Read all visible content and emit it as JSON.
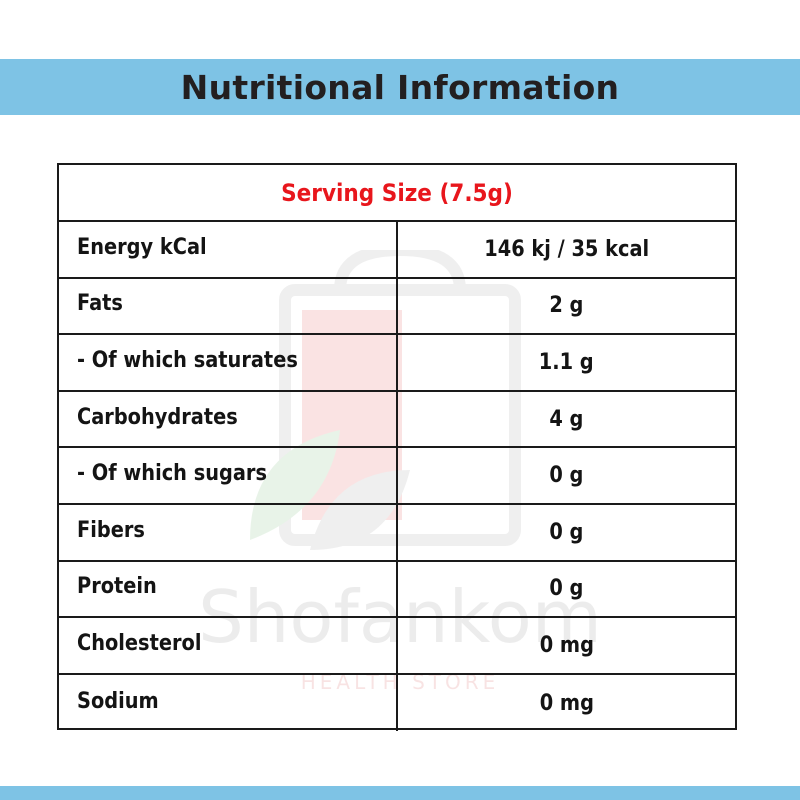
{
  "header": {
    "title": "Nutritional Information"
  },
  "watermark": {
    "name": "Shofankom",
    "tagline": "HEALTH STORE"
  },
  "table": {
    "serving_size": "Serving Size (7.5g)",
    "rows": [
      {
        "label": "Energy kCal",
        "value": "146 kj / 35 kcal"
      },
      {
        "label": "Fats",
        "value": "2 g"
      },
      {
        "label": "- Of which saturates",
        "value": "1.1 g"
      },
      {
        "label": "Carbohydrates",
        "value": "4 g"
      },
      {
        "label": "- Of which sugars",
        "value": "0 g"
      },
      {
        "label": "Fibers",
        "value": "0 g"
      },
      {
        "label": "Protein",
        "value": "0 g"
      },
      {
        "label": "Cholesterol",
        "value": "0 mg"
      },
      {
        "label": "Sodium",
        "value": "0 mg"
      }
    ]
  },
  "colors": {
    "band": "#7ec3e5",
    "serving_text": "#e8161c",
    "text": "#141414"
  }
}
